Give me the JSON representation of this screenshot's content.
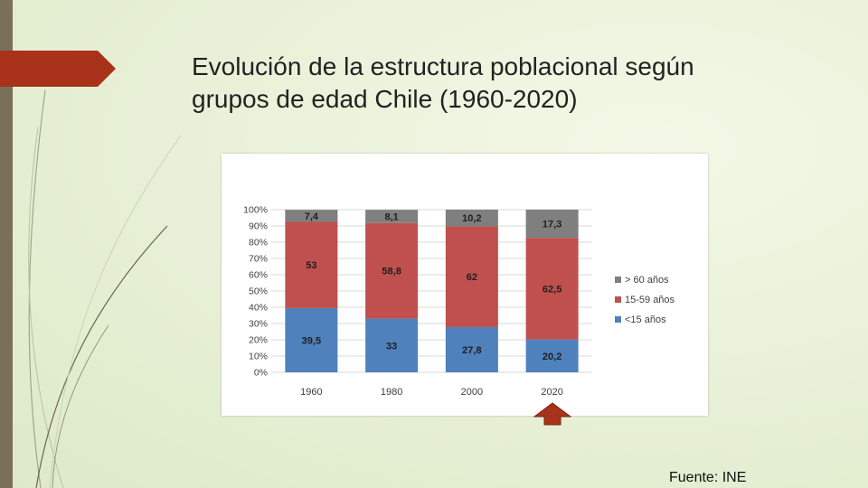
{
  "slide": {
    "title_line1": "Evolución de la estructura poblacional según",
    "title_line2": "grupos de edad Chile (1960-2020)",
    "source": "Fuente: INE",
    "accent_color": "#a8321a"
  },
  "chart_data": {
    "type": "bar",
    "stacked": true,
    "normalized_percent": true,
    "categories": [
      "1960",
      "1980",
      "2000",
      "2020"
    ],
    "series": [
      {
        "name": "<15 años",
        "color": "#4f81bd",
        "values": [
          39.5,
          33,
          27.8,
          20.2
        ],
        "labels": [
          "39,5",
          "33",
          "27,8",
          "20,2"
        ]
      },
      {
        "name": "15-59 años",
        "color": "#c0504d",
        "values": [
          53,
          58.8,
          62,
          62.5
        ],
        "labels": [
          "53",
          "58,8",
          "62",
          "62,5"
        ]
      },
      {
        "name": "> 60 años",
        "color": "#7f7f7f",
        "values": [
          7.4,
          8.1,
          10.2,
          17.3
        ],
        "labels": [
          "7,4",
          "8,1",
          "10,2",
          "17,3"
        ]
      }
    ],
    "legend_order": [
      "> 60 años",
      "15-59 años",
      "<15 años"
    ],
    "yticks": [
      "0%",
      "10%",
      "20%",
      "30%",
      "40%",
      "50%",
      "60%",
      "70%",
      "80%",
      "90%",
      "100%"
    ],
    "ylim": [
      0,
      100
    ],
    "legend_position": "right",
    "grid": true,
    "highlighted_category": "2020"
  }
}
